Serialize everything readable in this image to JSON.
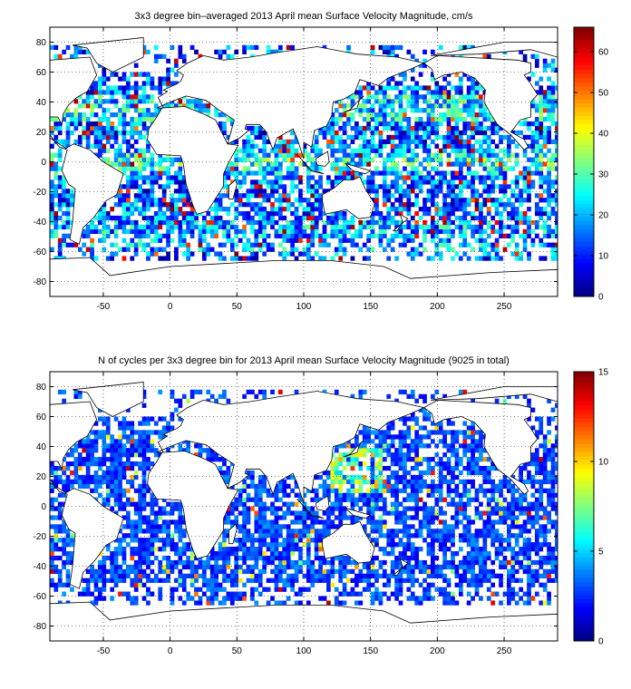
{
  "colors": {
    "land": "#ffffff",
    "coast": "#000000",
    "grid": "#000000"
  },
  "chart_data": [
    {
      "type": "heatmap",
      "title": "3x3 degree bin–averaged 2013 April mean Surface Velocity Magnitude, cm/s",
      "xlabel": "",
      "ylabel": "",
      "xlim": [
        -90,
        290
      ],
      "ylim": [
        -90,
        90
      ],
      "xticks": [
        -50,
        0,
        50,
        100,
        150,
        200,
        250
      ],
      "yticks": [
        -80,
        -60,
        -40,
        -20,
        0,
        20,
        40,
        60,
        80
      ],
      "grid": true,
      "colorbar": {
        "min": 0,
        "max": 66,
        "ticks": [
          0,
          10,
          20,
          30,
          40,
          50,
          60
        ],
        "colormap": "jet"
      },
      "bin_size_deg": 3,
      "sample_bins": [
        {
          "lon": -66,
          "lat": 33,
          "value": 45
        },
        {
          "lon": -72,
          "lat": 36,
          "value": 60
        },
        {
          "lon": -45,
          "lat": 42,
          "value": 42
        },
        {
          "lon": -60,
          "lat": -39,
          "value": 62
        },
        {
          "lon": 30,
          "lat": -36,
          "value": 64
        },
        {
          "lon": 140,
          "lat": 36,
          "value": 55
        },
        {
          "lon": 145,
          "lat": 33,
          "value": 48
        },
        {
          "lon": 130,
          "lat": 3,
          "value": 52
        },
        {
          "lon": 200,
          "lat": 0,
          "value": 44
        },
        {
          "lon": 255,
          "lat": 5,
          "value": 46
        },
        {
          "lon": 60,
          "lat": 5,
          "value": 50
        },
        {
          "lon": 10,
          "lat": 0,
          "value": 40
        },
        {
          "lon": 180,
          "lat": -30,
          "value": 15
        },
        {
          "lon": 220,
          "lat": -40,
          "value": 12
        },
        {
          "lon": 100,
          "lat": -45,
          "value": 25
        },
        {
          "lon": 150,
          "lat": -55,
          "value": 55
        }
      ]
    },
    {
      "type": "heatmap",
      "title": "N of cycles per 3x3 degree bin for 2013 April mean Surface Velocity Magnitude (9025 in total)",
      "xlabel": "",
      "ylabel": "",
      "xlim": [
        -90,
        290
      ],
      "ylim": [
        -90,
        90
      ],
      "xticks": [
        -50,
        0,
        50,
        100,
        150,
        200,
        250
      ],
      "yticks": [
        -80,
        -60,
        -40,
        -20,
        0,
        20,
        40,
        60,
        80
      ],
      "grid": true,
      "colorbar": {
        "min": 0,
        "max": 15,
        "ticks": [
          0,
          5,
          10,
          15
        ],
        "colormap": "jet"
      },
      "bin_size_deg": 3,
      "sample_bins": [
        {
          "lon": 135,
          "lat": 30,
          "value": 12
        },
        {
          "lon": 130,
          "lat": 15,
          "value": 11
        },
        {
          "lon": -80,
          "lat": 30,
          "value": 12
        },
        {
          "lon": 10,
          "lat": 40,
          "value": 8
        },
        {
          "lon": 180,
          "lat": -40,
          "value": 2
        },
        {
          "lon": 90,
          "lat": -50,
          "value": 2
        },
        {
          "lon": 230,
          "lat": 40,
          "value": 4
        },
        {
          "lon": 10,
          "lat": 5,
          "value": 5
        },
        {
          "lon": 255,
          "lat": 20,
          "value": 6
        }
      ]
    }
  ]
}
